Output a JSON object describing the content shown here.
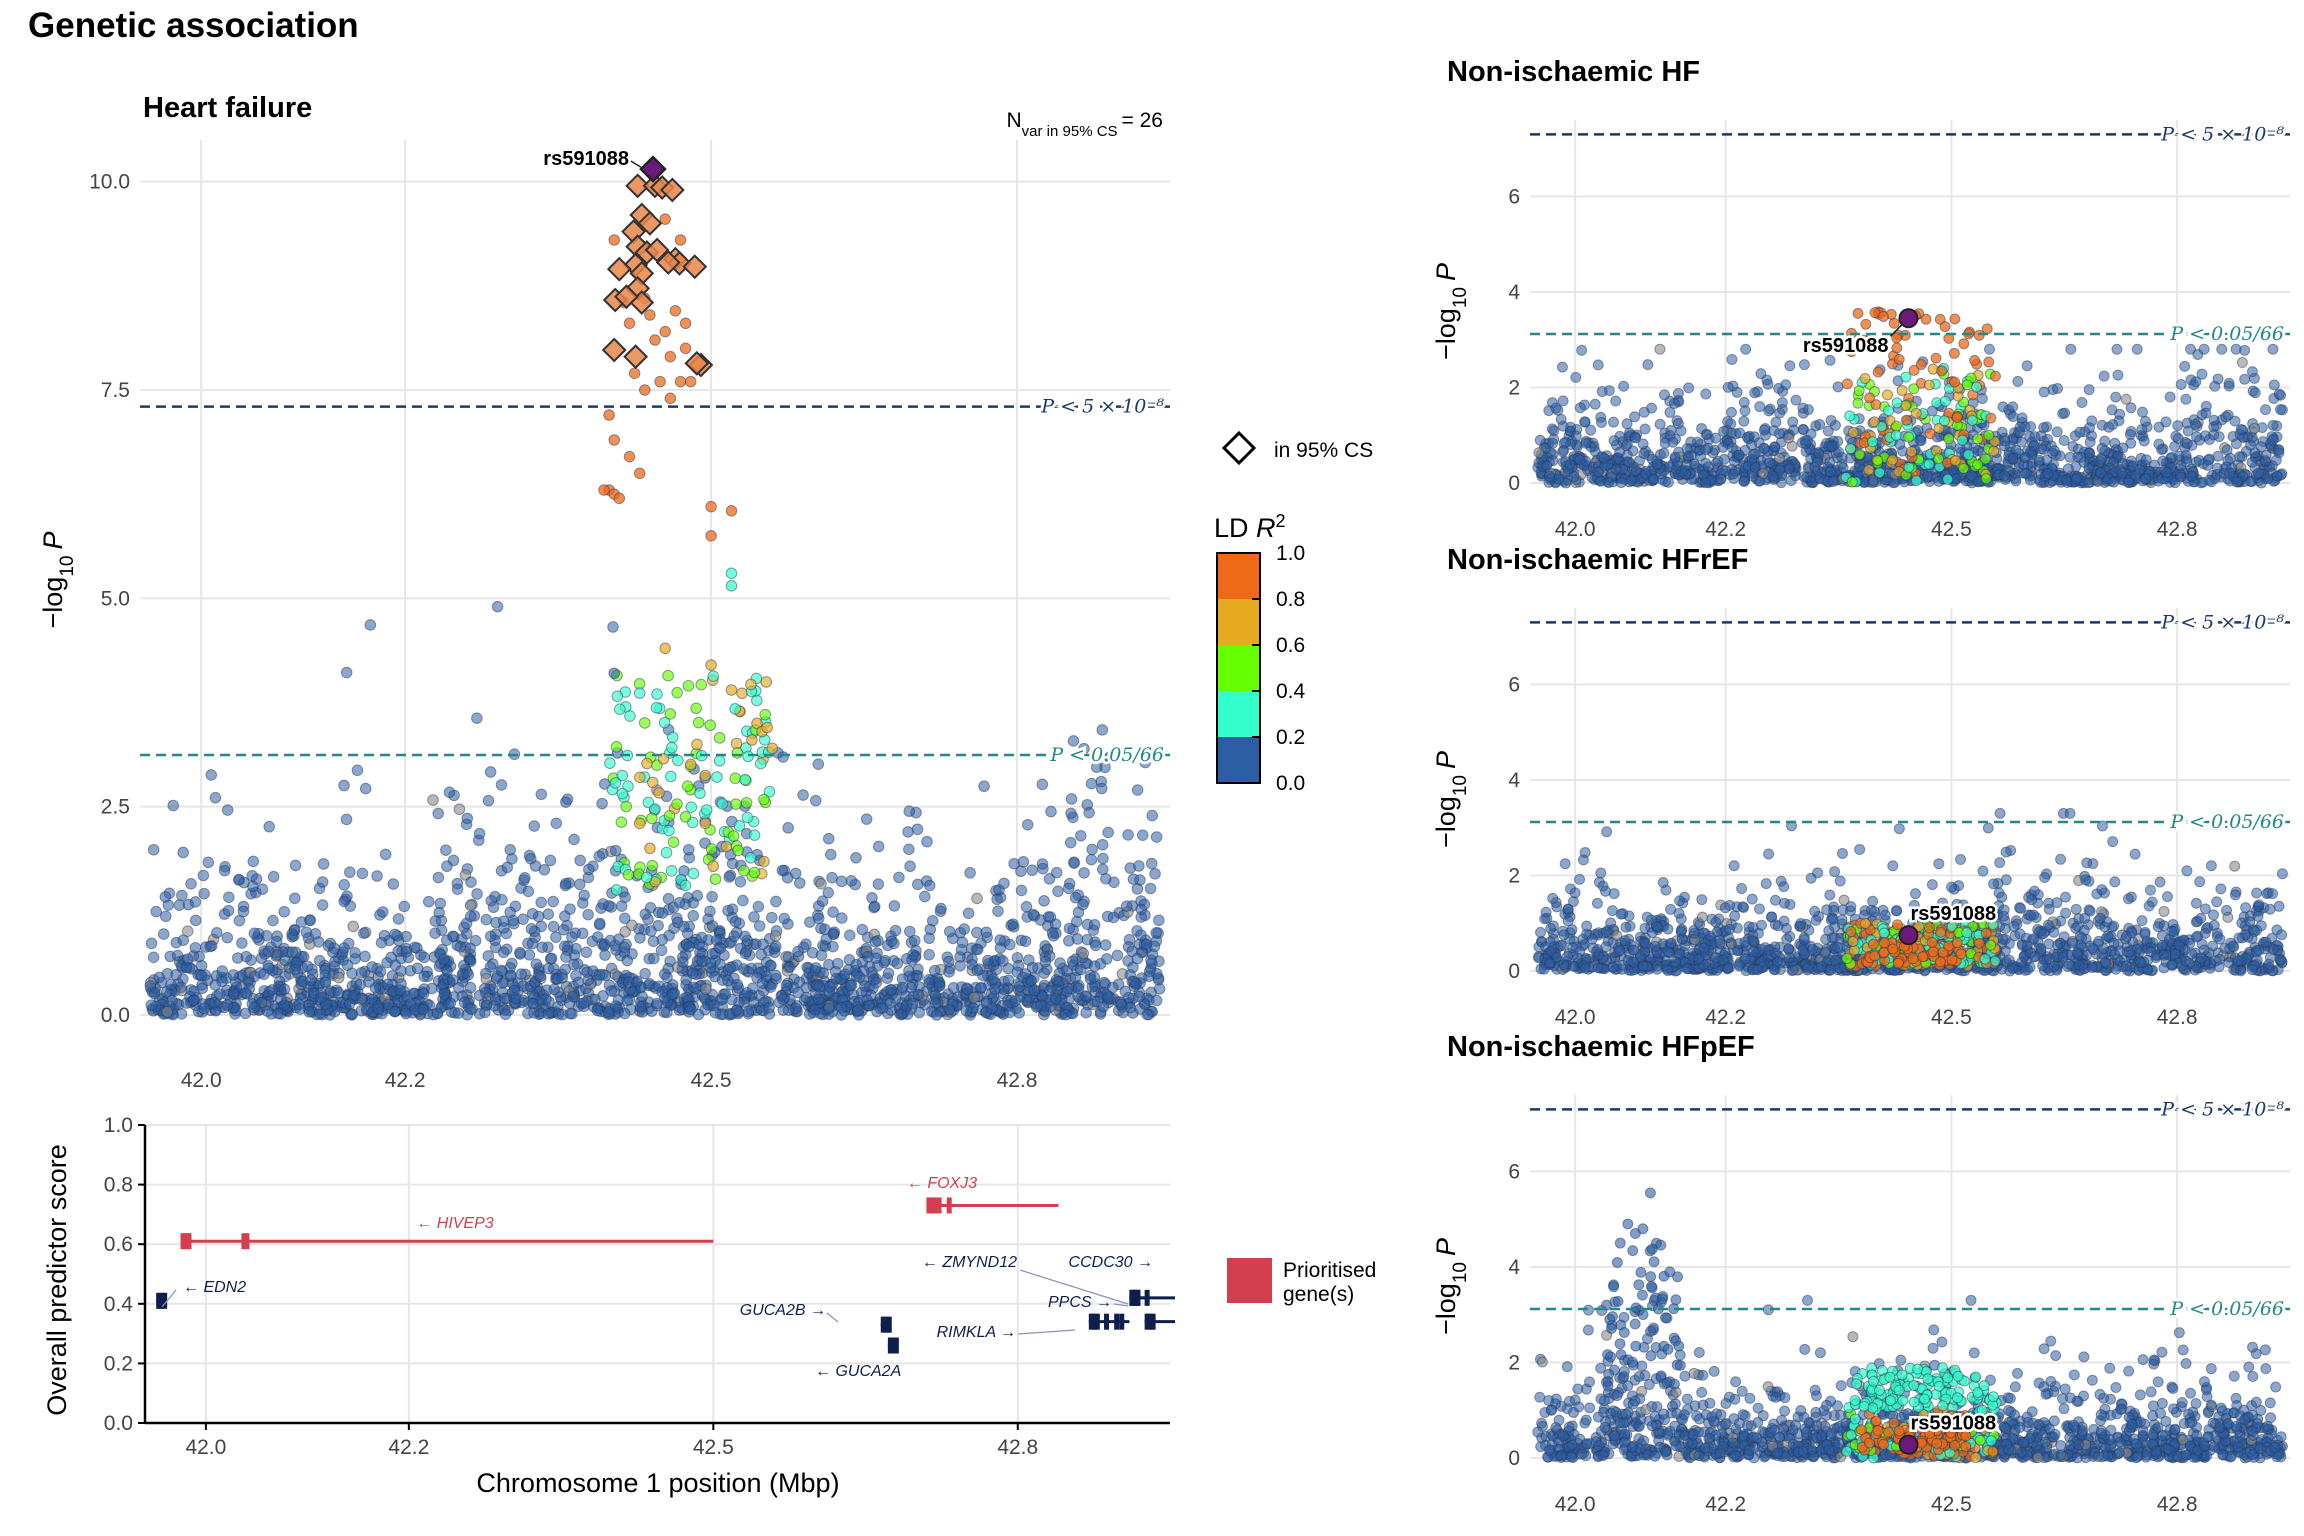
{
  "page_title": "Genetic association",
  "colors": {
    "ld_bins": [
      "#2c5ea6",
      "#33ffcc",
      "#66ff00",
      "#e6aa22",
      "#ee6a18"
    ],
    "lead": "#6a1b7a",
    "grey_point": "#8a8a8a",
    "gw_line": "#1b3a6b",
    "bonf_line": "#1f8a87",
    "gene_prioritised": "#d53e4f",
    "gene_other": "#0e1f4d",
    "grid": "#e6e6e6"
  },
  "legend": {
    "cs_label": "in 95% CS",
    "ld_title": "LD R²",
    "ld_ticks": [
      "1.0",
      "0.8",
      "0.6",
      "0.4",
      "0.2",
      "0.0"
    ],
    "gene_label_line1": "Prioritised",
    "gene_label_line2": "gene(s)"
  },
  "chart_data": [
    {
      "type": "scatter",
      "title": "Heart failure",
      "annotation": "Nvar in 95% CS = 26",
      "n_var_cs": 26,
      "xlabel": "",
      "ylabel": "−log10 P",
      "xlim": [
        41.94,
        42.95
      ],
      "ylim": [
        0,
        10.5
      ],
      "x_ticks": [
        "42.0",
        "42.2",
        "42.5",
        "42.8"
      ],
      "y_ticks": [
        "0.0",
        "2.5",
        "5.0",
        "7.5",
        "10.0"
      ],
      "thresholds": [
        {
          "label": "P < 5 × 10⁻⁸",
          "value": 7.3
        },
        {
          "label": "P < 0.05/66",
          "value": 3.12
        }
      ],
      "lead_snp": {
        "name": "rs591088",
        "x": 42.443,
        "y": 10.15
      },
      "credible_set": [
        [
          42.443,
          10.15
        ],
        [
          42.428,
          9.95
        ],
        [
          42.445,
          9.95
        ],
        [
          42.452,
          9.93
        ],
        [
          42.462,
          9.9
        ],
        [
          42.432,
          9.6
        ],
        [
          42.424,
          9.4
        ],
        [
          42.428,
          9.22
        ],
        [
          42.437,
          9.15
        ],
        [
          42.447,
          9.18
        ],
        [
          42.426,
          9.0
        ],
        [
          42.432,
          8.9
        ],
        [
          42.41,
          8.95
        ],
        [
          42.465,
          9.07
        ],
        [
          42.469,
          9.02
        ],
        [
          42.484,
          8.98
        ],
        [
          42.428,
          8.72
        ],
        [
          42.432,
          8.55
        ],
        [
          42.406,
          8.58
        ],
        [
          42.405,
          7.98
        ],
        [
          42.426,
          7.9
        ],
        [
          42.49,
          7.8
        ],
        [
          42.486,
          7.82
        ],
        [
          42.417,
          8.62
        ],
        [
          42.458,
          9.03
        ],
        [
          42.44,
          9.5
        ]
      ],
      "variants": {
        "count": 2200,
        "range": [
          41.95,
          42.94
        ],
        "peak": [
          42.3,
          42.6
        ]
      }
    },
    {
      "type": "scatter",
      "title": "Non-ischaemic HF",
      "xlabel": "",
      "ylabel": "−log10 P",
      "xlim": [
        41.94,
        42.95
      ],
      "ylim": [
        0,
        7.6
      ],
      "x_ticks": [
        "42.0",
        "42.2",
        "42.5",
        "42.8"
      ],
      "y_ticks": [
        "0",
        "2",
        "4",
        "6"
      ],
      "thresholds": [
        {
          "label": "P < 5 × 10⁻⁸",
          "value": 7.3
        },
        {
          "label": "P < 0.05/66",
          "value": 3.12
        }
      ],
      "lead_snp": {
        "name": "rs591088",
        "x": 42.443,
        "y": 3.45
      }
    },
    {
      "type": "scatter",
      "title": "Non-ischaemic HFrEF",
      "xlabel": "",
      "ylabel": "−log10 P",
      "xlim": [
        41.94,
        42.95
      ],
      "ylim": [
        0,
        7.6
      ],
      "x_ticks": [
        "42.0",
        "42.2",
        "42.5",
        "42.8"
      ],
      "y_ticks": [
        "0",
        "2",
        "4",
        "6"
      ],
      "thresholds": [
        {
          "label": "P < 5 × 10⁻⁸",
          "value": 7.3
        },
        {
          "label": "P < 0.05/66",
          "value": 3.12
        }
      ],
      "lead_snp": {
        "name": "rs591088",
        "x": 42.443,
        "y": 0.75
      }
    },
    {
      "type": "scatter",
      "title": "Non-ischaemic HFpEF",
      "xlabel": "",
      "ylabel": "−log10 P",
      "xlim": [
        41.94,
        42.95
      ],
      "ylim": [
        0,
        7.6
      ],
      "x_ticks": [
        "42.0",
        "42.2",
        "42.5",
        "42.8"
      ],
      "y_ticks": [
        "0",
        "2",
        "4",
        "6"
      ],
      "thresholds": [
        {
          "label": "P < 5 × 10⁻⁸",
          "value": 7.3
        },
        {
          "label": "P < 0.05/66",
          "value": 3.12
        }
      ],
      "lead_snp": {
        "name": "rs591088",
        "x": 42.443,
        "y": 0.28
      }
    },
    {
      "type": "gene_track",
      "title": "",
      "xlabel": "Chromosome 1 position (Mbp)",
      "ylabel": "Overall predictor score",
      "xlim": [
        41.94,
        42.95
      ],
      "ylim": [
        0,
        1.0
      ],
      "x_ticks": [
        "42.0",
        "42.2",
        "42.5",
        "42.8"
      ],
      "y_ticks": [
        "0.0",
        "0.2",
        "0.4",
        "0.6",
        "0.8",
        "1.0"
      ],
      "genes": [
        {
          "name": "HIVEP3",
          "label": "← HIVEP3",
          "start": 41.975,
          "end": 42.5,
          "score": 0.61,
          "prioritised": true
        },
        {
          "name": "FOXJ3",
          "label": "← FOXJ3",
          "start": 42.71,
          "end": 42.84,
          "score": 0.73,
          "prioritised": true
        },
        {
          "name": "EDN2",
          "label": "← EDN2",
          "start": 41.951,
          "end": 41.958,
          "score": 0.41,
          "prioritised": false
        },
        {
          "name": "GUCA2B",
          "label": "GUCA2B →",
          "start": 42.665,
          "end": 42.669,
          "score": 0.33,
          "prioritised": false
        },
        {
          "name": "GUCA2A",
          "label": "← GUCA2A",
          "start": 42.672,
          "end": 42.676,
          "score": 0.26,
          "prioritised": false
        },
        {
          "name": "ZMYND12",
          "label": "← ZMYND12",
          "start": 42.91,
          "end": 42.93,
          "score": 0.42,
          "prioritised": false
        },
        {
          "name": "CCDC30",
          "label": "CCDC30 →",
          "start": 42.91,
          "end": 42.955,
          "score": 0.42,
          "prioritised": false
        },
        {
          "name": "PPCS",
          "label": "PPCS →",
          "start": 42.925,
          "end": 42.955,
          "score": 0.34,
          "prioritised": false
        },
        {
          "name": "RIMKLA",
          "label": "RIMKLA →",
          "start": 42.87,
          "end": 42.91,
          "score": 0.34,
          "prioritised": false
        }
      ]
    }
  ]
}
